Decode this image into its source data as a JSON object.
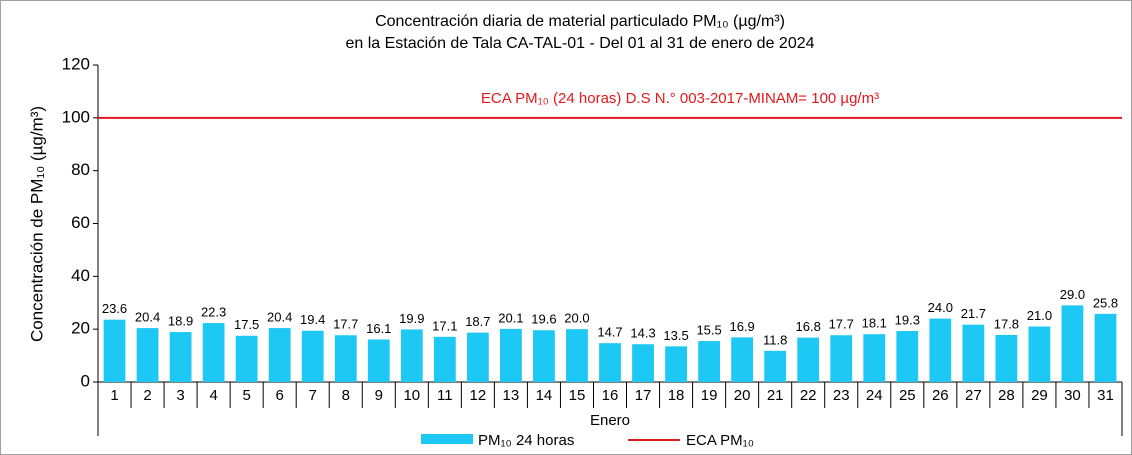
{
  "chart_data": {
    "type": "bar",
    "title": "Concentración  diaria de material particulado PM₁₀ (µg/m³)",
    "subtitle": "en la Estación de Tala CA-TAL-01  - Del 01 al 31 de enero de 2024",
    "y_label": "Concentración  de PM₁₀ (µg/m³)",
    "x_label": "Enero",
    "categories": [
      "1",
      "2",
      "3",
      "4",
      "5",
      "6",
      "7",
      "8",
      "9",
      "10",
      "11",
      "12",
      "13",
      "14",
      "15",
      "16",
      "17",
      "18",
      "19",
      "20",
      "21",
      "22",
      "23",
      "24",
      "25",
      "26",
      "27",
      "28",
      "29",
      "30",
      "31"
    ],
    "series": [
      {
        "name": "PM₁₀ 24 horas",
        "color": "#1ec8f4",
        "values": [
          23.6,
          20.4,
          18.9,
          22.3,
          17.5,
          20.4,
          19.4,
          17.7,
          16.1,
          19.9,
          17.1,
          18.7,
          20.1,
          19.6,
          20.0,
          14.7,
          14.3,
          13.5,
          15.5,
          16.9,
          11.8,
          16.8,
          17.7,
          18.1,
          19.3,
          24.0,
          21.7,
          17.8,
          21.0,
          29.0,
          25.8
        ],
        "value_labels": [
          "23.6",
          "20.4",
          "18.9",
          "22.3",
          "17.5",
          "20.4",
          "19.4",
          "17.7",
          "16.1",
          "19.9",
          "17.1",
          "18.7",
          "20.1",
          "19.6",
          "20.0",
          "14.7",
          "14.3",
          "13.5",
          "15.5",
          "16.9",
          "11.8",
          "16.8",
          "17.7",
          "18.1",
          "19.3",
          "24.0",
          "21.7",
          "17.8",
          "21.0",
          "29.0",
          "25.8"
        ]
      }
    ],
    "reference_line": {
      "name": "ECA PM₁₀",
      "value": 100,
      "color": "#e3191c",
      "label": "ECA PM₁₀ (24 horas) D.S N.° 003-2017-MINAM= 100 µg/m³"
    },
    "ylim": [
      0,
      120
    ],
    "yticks": [
      0,
      20,
      40,
      60,
      80,
      100,
      120
    ],
    "grid": false
  }
}
